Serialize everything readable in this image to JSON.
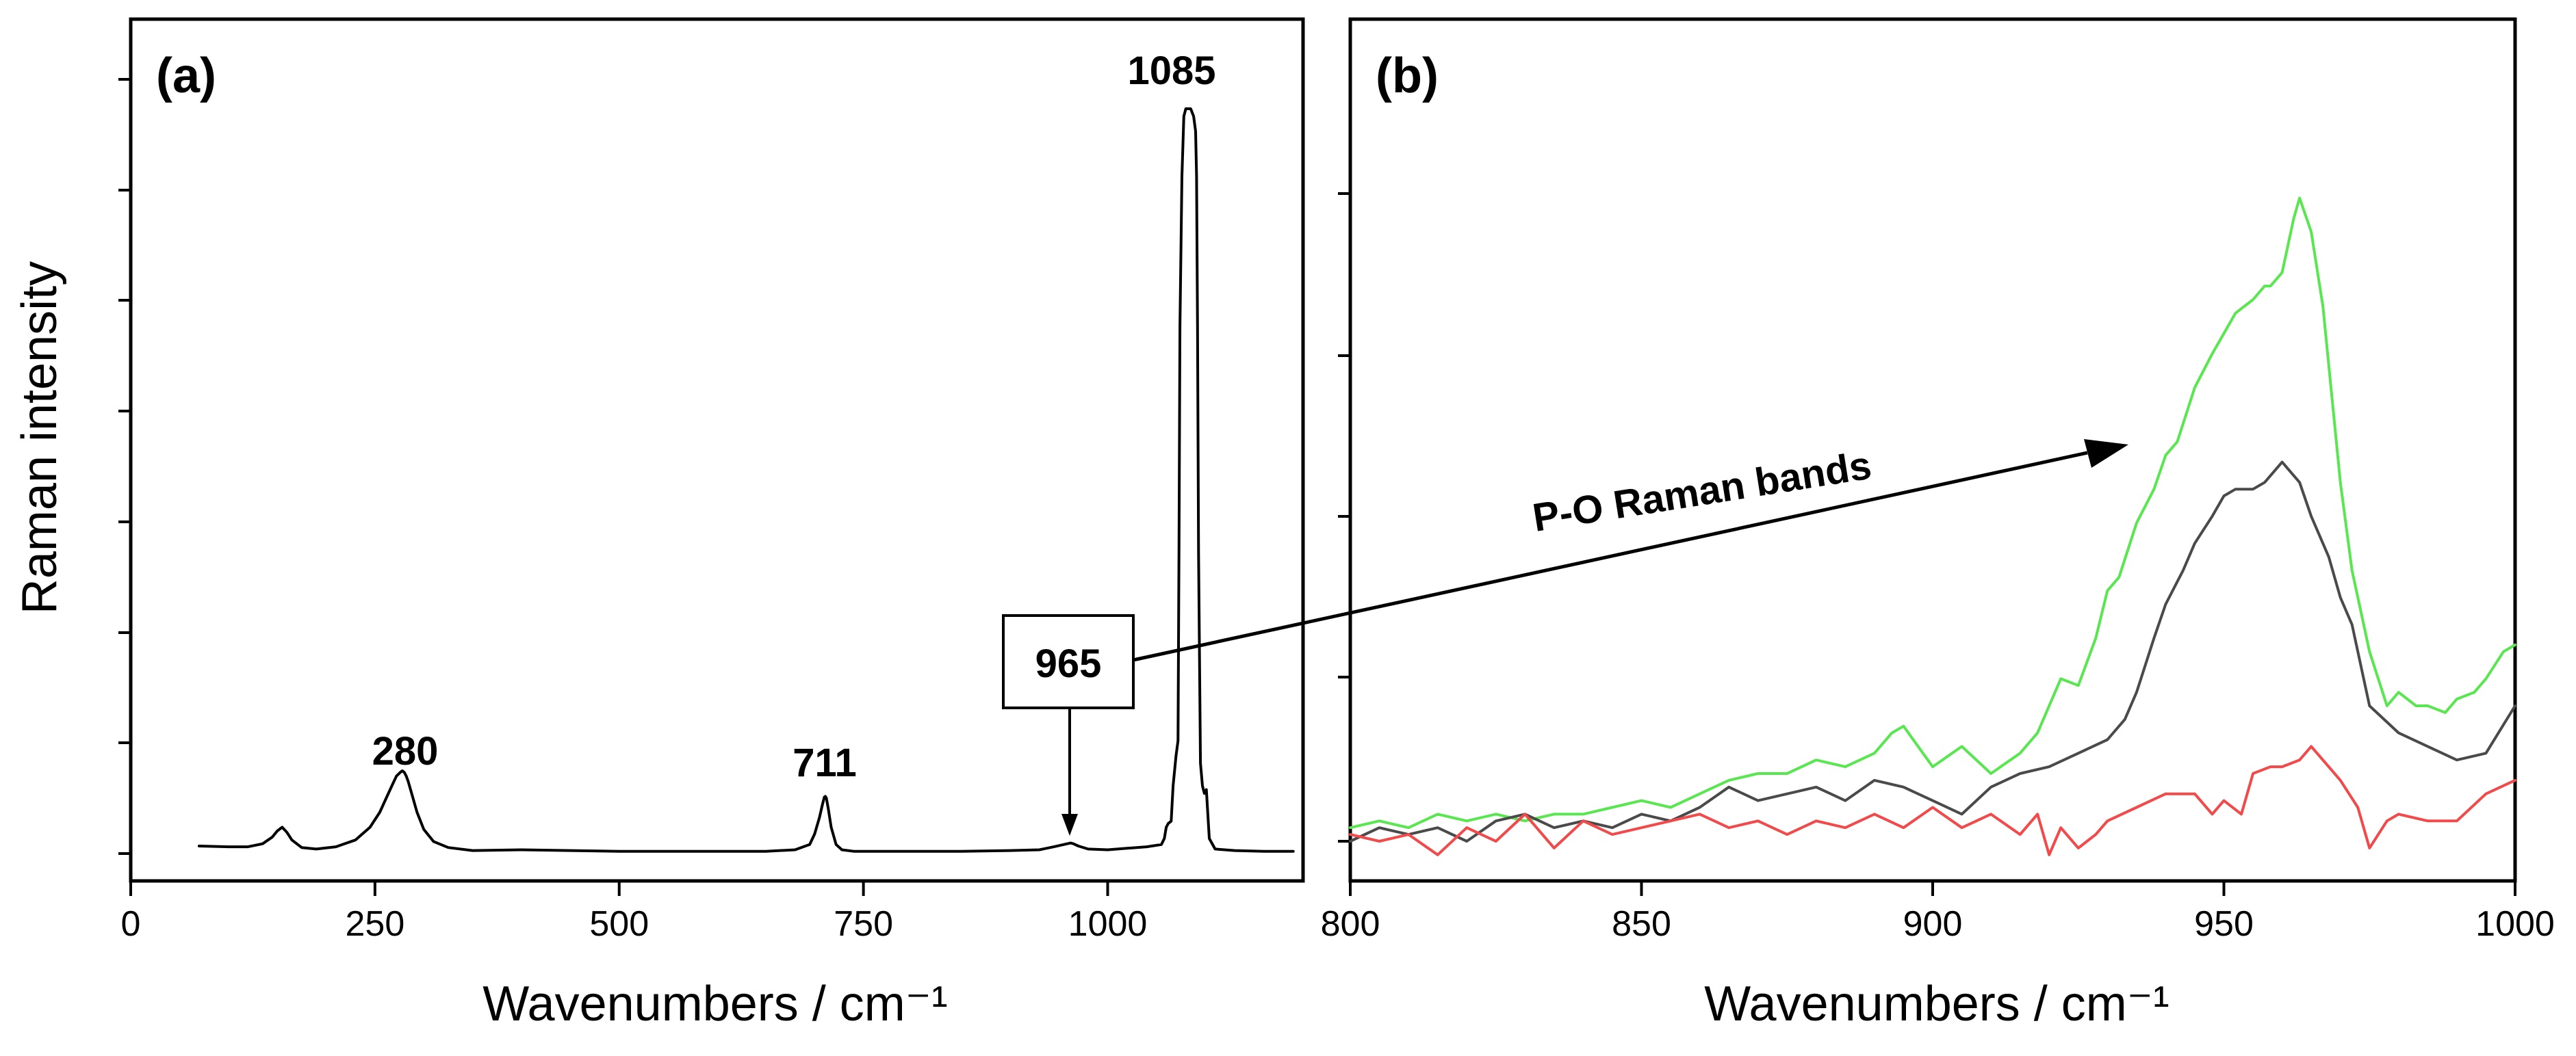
{
  "chart_data": [
    {
      "panel": "(a)",
      "type": "line",
      "xlabel": "Wavenumbers / cm⁻¹",
      "ylabel": "Raman intensity",
      "xlim": [
        0,
        1200
      ],
      "ylim": [
        0,
        100
      ],
      "xticks": [
        0,
        250,
        500,
        750,
        1000
      ],
      "xtick_labels": [
        "0",
        "250",
        "500",
        "750",
        "1000"
      ],
      "series": [
        {
          "name": "spectrum",
          "color": "#000000",
          "x": [
            70,
            100,
            120,
            135,
            145,
            150,
            155,
            160,
            165,
            175,
            190,
            210,
            230,
            245,
            255,
            262,
            268,
            272,
            276,
            278,
            280,
            282,
            284,
            288,
            293,
            300,
            310,
            325,
            350,
            400,
            450,
            500,
            550,
            600,
            650,
            680,
            695,
            700,
            705,
            708,
            710,
            711,
            712,
            714,
            717,
            722,
            728,
            740,
            770,
            800,
            850,
            900,
            930,
            945,
            955,
            962,
            965,
            970,
            980,
            1000,
            1020,
            1040,
            1055,
            1058,
            1060,
            1062,
            1065,
            1067,
            1070,
            1072,
            1073,
            1074,
            1076,
            1078,
            1080,
            1082,
            1085,
            1088,
            1090,
            1091,
            1092,
            1093,
            1095,
            1097,
            1099,
            1101,
            1104,
            1110,
            1130,
            1160,
            1190
          ],
          "y": [
            1.0,
            0.9,
            0.9,
            1.3,
            2.2,
            3.0,
            3.5,
            2.8,
            1.8,
            0.8,
            0.6,
            0.9,
            1.8,
            3.5,
            5.5,
            7.5,
            9.2,
            10.3,
            10.8,
            11.0,
            10.8,
            10.3,
            9.6,
            7.8,
            5.5,
            3.2,
            1.6,
            0.8,
            0.4,
            0.5,
            0.4,
            0.3,
            0.3,
            0.3,
            0.3,
            0.5,
            1.2,
            2.6,
            4.8,
            6.5,
            7.5,
            7.6,
            7.4,
            6.0,
            3.5,
            1.2,
            0.5,
            0.3,
            0.3,
            0.3,
            0.3,
            0.4,
            0.5,
            0.9,
            1.2,
            1.4,
            1.3,
            1.0,
            0.6,
            0.5,
            0.7,
            0.9,
            1.2,
            2.0,
            3.5,
            4.0,
            4.3,
            9.0,
            13.0,
            15.0,
            40.0,
            70.0,
            90.0,
            98.0,
            99.0,
            99.0,
            99.0,
            98.0,
            96.0,
            90.0,
            70.0,
            40.0,
            12.0,
            9.0,
            8.0,
            8.5,
            2.0,
            0.6,
            0.4,
            0.3,
            0.3
          ]
        }
      ],
      "annotations": [
        "280",
        "711",
        "1085",
        "965"
      ]
    },
    {
      "panel": "(b)",
      "type": "line",
      "xlabel": "Wavenumbers / cm⁻¹",
      "ylabel": "",
      "xlim": [
        800,
        1000
      ],
      "ylim": [
        0,
        100
      ],
      "xticks": [
        800,
        850,
        900,
        950,
        1000
      ],
      "xtick_labels": [
        "800",
        "850",
        "900",
        "950",
        "1000"
      ],
      "series": [
        {
          "name": "green spectrum",
          "color": "#59e650",
          "x": [
            800,
            805,
            810,
            815,
            820,
            825,
            830,
            835,
            840,
            845,
            850,
            855,
            860,
            865,
            870,
            875,
            880,
            885,
            890,
            893,
            895,
            900,
            905,
            910,
            915,
            918,
            920,
            922,
            925,
            928,
            930,
            932,
            935,
            938,
            940,
            942,
            945,
            948,
            950,
            952,
            955,
            957,
            958,
            960,
            962,
            963,
            965,
            967,
            970,
            972,
            975,
            978,
            980,
            983,
            985,
            988,
            990,
            993,
            995,
            998,
            1000
          ],
          "y": [
            2,
            3,
            2,
            4,
            3,
            4,
            3,
            4,
            4,
            5,
            6,
            5,
            7,
            9,
            10,
            10,
            12,
            11,
            13,
            16,
            17,
            11,
            14,
            10,
            13,
            16,
            20,
            24,
            23,
            30,
            37,
            39,
            47,
            52,
            57,
            59,
            67,
            72,
            75,
            78,
            80,
            82,
            82,
            84,
            92,
            95,
            90,
            79,
            53,
            40,
            28,
            20,
            22,
            20,
            20,
            19,
            21,
            22,
            24,
            28,
            29
          ]
        },
        {
          "name": "dark grey spectrum",
          "color": "#4a4a4a",
          "x": [
            800,
            805,
            810,
            815,
            820,
            825,
            830,
            835,
            840,
            845,
            850,
            855,
            860,
            865,
            870,
            875,
            880,
            885,
            890,
            895,
            900,
            905,
            910,
            915,
            920,
            925,
            930,
            933,
            935,
            938,
            940,
            943,
            945,
            948,
            950,
            952,
            955,
            957,
            960,
            963,
            965,
            968,
            970,
            972,
            975,
            980,
            985,
            990,
            995,
            1000
          ],
          "y": [
            0,
            2,
            1,
            2,
            0,
            3,
            4,
            2,
            3,
            2,
            4,
            3,
            5,
            8,
            6,
            7,
            8,
            6,
            9,
            8,
            6,
            4,
            8,
            10,
            11,
            13,
            15,
            18,
            22,
            30,
            35,
            40,
            44,
            48,
            51,
            52,
            52,
            53,
            56,
            53,
            48,
            42,
            36,
            32,
            20,
            16,
            14,
            12,
            13,
            20
          ]
        },
        {
          "name": "red spectrum",
          "color": "#f24a4a",
          "x": [
            800,
            805,
            810,
            815,
            820,
            825,
            830,
            835,
            840,
            845,
            850,
            855,
            860,
            865,
            870,
            875,
            880,
            885,
            890,
            895,
            900,
            905,
            910,
            915,
            918,
            920,
            922,
            925,
            928,
            930,
            935,
            940,
            945,
            948,
            950,
            953,
            955,
            958,
            960,
            963,
            965,
            968,
            970,
            973,
            975,
            978,
            980,
            985,
            990,
            995,
            1000
          ],
          "y": [
            1,
            0,
            1,
            -2,
            2,
            0,
            4,
            -1,
            3,
            1,
            2,
            3,
            4,
            2,
            3,
            1,
            3,
            2,
            4,
            2,
            5,
            2,
            4,
            1,
            4,
            -2,
            2,
            -1,
            1,
            3,
            5,
            7,
            7,
            4,
            6,
            4,
            10,
            11,
            11,
            12,
            14,
            11,
            9,
            5,
            -1,
            3,
            4,
            3,
            3,
            7,
            9
          ]
        }
      ],
      "annotations": [
        "P-O Raman bands"
      ]
    }
  ],
  "labels": {
    "panel_a": "(a)",
    "panel_b": "(b)",
    "ylabel": "Raman intensity",
    "xlabel_a": "Wavenumbers / cm⁻¹",
    "xlabel_b": "Wavenumbers / cm⁻¹",
    "peak_280": "280",
    "peak_711": "711",
    "peak_1085": "1085",
    "peak_965": "965",
    "po_bands": "P-O Raman bands"
  }
}
